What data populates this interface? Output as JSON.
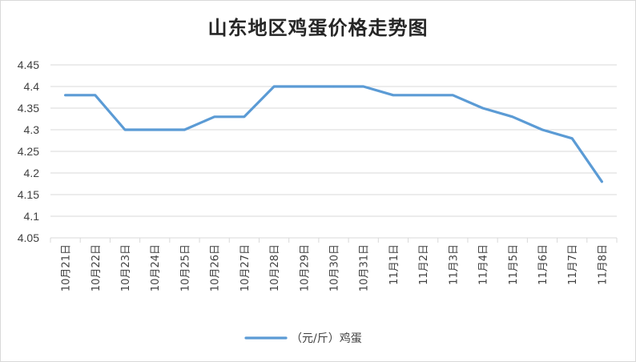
{
  "chart_data": {
    "type": "line",
    "title": "山东地区鸡蛋价格走势图",
    "categories": [
      "10月21日",
      "10月22日",
      "10月23日",
      "10月24日",
      "10月25日",
      "10月26日",
      "10月27日",
      "10月28日",
      "10月29日",
      "10月30日",
      "10月31日",
      "11月1日",
      "11月2日",
      "11月3日",
      "11月4日",
      "11月5日",
      "11月6日",
      "11月7日",
      "11月8日"
    ],
    "series": [
      {
        "name": "（元/斤）鸡蛋",
        "values": [
          4.38,
          4.38,
          4.3,
          4.3,
          4.3,
          4.33,
          4.33,
          4.4,
          4.4,
          4.4,
          4.4,
          4.38,
          4.38,
          4.38,
          4.35,
          4.33,
          4.3,
          4.28,
          4.18
        ],
        "color": "#5b9bd5"
      }
    ],
    "yticks": [
      "4.45",
      "4.4",
      "4.35",
      "4.3",
      "4.25",
      "4.2",
      "4.15",
      "4.1",
      "4.05"
    ],
    "ylim": [
      4.05,
      4.45
    ],
    "xlabel": "",
    "ylabel": "",
    "grid": true,
    "legend": "bottom"
  },
  "colors": {
    "line": "#5b9bd5",
    "grid": "#d9d9d9",
    "text": "#404040"
  }
}
